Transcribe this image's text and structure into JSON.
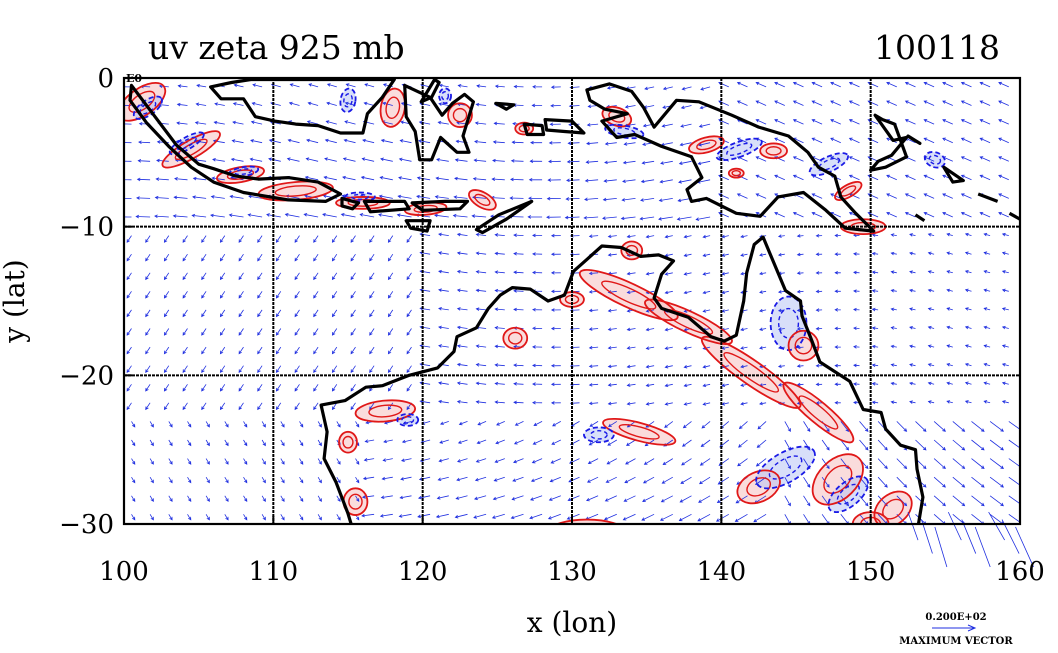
{
  "chart_data": {
    "type": "vector-field-map",
    "title": "uv zeta 925 mb",
    "date_label": "100118",
    "xlabel": "x (lon)",
    "ylabel": "y (lat)",
    "xlim": [
      100,
      160
    ],
    "ylim": [
      -30,
      0
    ],
    "x_ticks": [
      100,
      110,
      120,
      130,
      140,
      150,
      160
    ],
    "x_tick_labels": [
      "100",
      "110",
      "120",
      "130",
      "140",
      "150",
      "160"
    ],
    "y_ticks": [
      0,
      -10,
      -20,
      -30
    ],
    "y_tick_labels": [
      "0",
      "−10",
      "−20",
      "−30"
    ],
    "grid_lines": {
      "x": [
        110,
        120,
        130,
        140,
        150
      ],
      "y": [
        -10,
        -20
      ]
    },
    "corner_label": "E0",
    "vector_legend": {
      "value": "0.200E+02",
      "label": "MAXIMUM VECTOR"
    },
    "colors": {
      "vectors": "#1f2fe0",
      "positive_vorticity": "#e01818",
      "negative_vorticity": "#1a1ae6",
      "negative_fill": "#b8c4f4",
      "positive_fill": "#f6c0c0",
      "coastline": "#000000",
      "grid": "#000000"
    },
    "series": [
      {
        "name": "",
        "kind": "wind-vectors"
      },
      {
        "name": "",
        "kind": "positive-vorticity-contours"
      },
      {
        "name": "",
        "kind": "negative-vorticity-contours"
      }
    ]
  }
}
